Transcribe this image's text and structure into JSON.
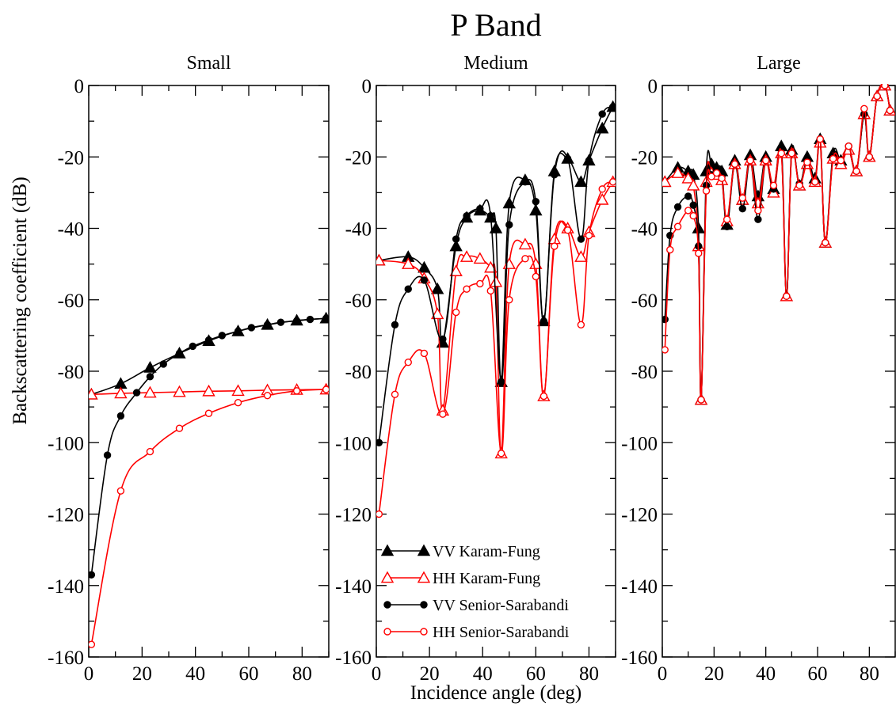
{
  "chart_data": {
    "type": "line",
    "title": "P Band",
    "xlabel": "Incidence angle (deg)",
    "ylabel": "Backscattering coefficient (dB)",
    "xlim": [
      0,
      90
    ],
    "ylim": [
      -160,
      0
    ],
    "x_ticks": [
      0,
      20,
      40,
      60,
      80
    ],
    "y_ticks": [
      0,
      -20,
      -40,
      -60,
      -80,
      -100,
      -120,
      -140,
      -160
    ],
    "legend_placement": "lower-right of middle panel",
    "colors": {
      "VV": "#000000",
      "HH": "#ff0000"
    },
    "series_styles": [
      {
        "name": "VV Karam-Fung",
        "color": "#000000",
        "marker": "filled-triangle"
      },
      {
        "name": "HH Karam-Fung",
        "color": "#ff0000",
        "marker": "open-triangle"
      },
      {
        "name": "VV Senior-Sarabandi",
        "color": "#000000",
        "marker": "filled-circle"
      },
      {
        "name": "HH Senior-Sarabandi",
        "color": "#ff0000",
        "marker": "open-circle"
      }
    ],
    "panels": [
      {
        "title": "Small",
        "series": [
          {
            "name": "VV Karam-Fung",
            "x": [
              1,
              12,
              23,
              34,
              45,
              56,
              67,
              78,
              89
            ],
            "y": [
              -86.5,
              -83.5,
              -79,
              -75,
              -71.5,
              -68.8,
              -67,
              -65.8,
              -65.2
            ]
          },
          {
            "name": "HH Karam-Fung",
            "x": [
              1,
              12,
              23,
              34,
              45,
              56,
              67,
              78,
              89
            ],
            "y": [
              -86.5,
              -86.2,
              -86,
              -85.8,
              -85.6,
              -85.5,
              -85.3,
              -85.2,
              -85.1
            ]
          },
          {
            "name": "VV Senior-Sarabandi",
            "x": [
              1,
              7,
              12,
              18,
              23,
              28,
              34,
              39,
              45,
              50,
              56,
              61,
              67,
              72,
              78,
              83,
              89
            ],
            "y": [
              -137,
              -103.5,
              -92.5,
              -86,
              -81.5,
              -78,
              -75,
              -73,
              -71.3,
              -70,
              -68.8,
              -67.8,
              -67,
              -66.3,
              -65.9,
              -65.5,
              -65.2
            ]
          },
          {
            "name": "HH Senior-Sarabandi",
            "x": [
              1,
              12,
              23,
              34,
              45,
              56,
              67,
              78,
              89
            ],
            "y": [
              -156.5,
              -113.5,
              -102.5,
              -96,
              -91.8,
              -88.8,
              -86.8,
              -85.5,
              -85.1
            ]
          }
        ]
      },
      {
        "title": "Medium",
        "series": [
          {
            "name": "VV Karam-Fung",
            "x": [
              1,
              12,
              18,
              23,
              25,
              30,
              34,
              39,
              43,
              45,
              47,
              50,
              56,
              60,
              63,
              67,
              72,
              77,
              80,
              85,
              89
            ],
            "y": [
              -49,
              -48,
              -51,
              -57,
              -72,
              -45,
              -37,
              -35,
              -37,
              -40,
              -83,
              -33,
              -26.5,
              -35,
              -66,
              -24,
              -20.5,
              -27,
              -21,
              -12,
              -6
            ]
          },
          {
            "name": "HH Karam-Fung",
            "x": [
              1,
              12,
              18,
              23,
              25,
              30,
              34,
              39,
              43,
              45,
              47,
              50,
              56,
              60,
              63,
              67,
              72,
              77,
              80,
              85,
              89
            ],
            "y": [
              -49,
              -50,
              -54,
              -64,
              -91,
              -52,
              -48,
              -48.5,
              -51,
              -55,
              -103,
              -50,
              -44.5,
              -50,
              -87,
              -43,
              -40,
              -48,
              -41,
              -32,
              -27
            ]
          },
          {
            "name": "VV Senior-Sarabandi",
            "x": [
              1,
              7,
              12,
              18,
              25,
              30,
              34,
              39,
              43,
              47,
              50,
              56,
              60,
              63,
              67,
              72,
              77,
              80,
              85,
              89
            ],
            "y": [
              -100,
              -67,
              -57,
              -54.5,
              -71,
              -43,
              -36.5,
              -34.5,
              -36.5,
              -83,
              -39,
              -27,
              -32.5,
              -66,
              -25,
              -20.5,
              -43,
              -21,
              -8,
              -6
            ]
          },
          {
            "name": "HH Senior-Sarabandi",
            "x": [
              1,
              7,
              12,
              18,
              25,
              30,
              34,
              39,
              43,
              47,
              50,
              56,
              60,
              63,
              67,
              72,
              77,
              80,
              85,
              89
            ],
            "y": [
              -120,
              -86.5,
              -77.5,
              -75,
              -92,
              -63.5,
              -57,
              -55.5,
              -57.5,
              -103,
              -60,
              -48.5,
              -53.5,
              -87,
              -45,
              -40.5,
              -67,
              -42,
              -29,
              -27
            ]
          }
        ]
      },
      {
        "title": "Large",
        "series": [
          {
            "name": "VV Karam-Fung",
            "x": [
              1,
              6,
              10,
              12,
              14,
              15,
              17,
              19,
              21,
              23,
              25,
              28,
              31,
              34,
              37,
              40,
              43,
              46,
              48,
              50,
              53,
              56,
              59,
              61,
              63,
              66,
              69,
              72,
              75,
              78,
              80,
              83,
              86,
              88
            ],
            "y": [
              -27,
              -23,
              -24,
              -25,
              -40,
              -88,
              -24,
              -22,
              -23,
              -24,
              -39,
              -21,
              -32,
              -19.5,
              -31,
              -20,
              -29,
              -17,
              -59,
              -18,
              -28,
              -20,
              -26,
              -15,
              -44,
              -19,
              -21,
              -18,
              -24,
              -8,
              -20,
              -3,
              0,
              -7
            ]
          },
          {
            "name": "HH Karam-Fung",
            "x": [
              1,
              6,
              10,
              12,
              14,
              15,
              17,
              19,
              21,
              23,
              25,
              28,
              31,
              34,
              37,
              40,
              43,
              46,
              48,
              50,
              53,
              56,
              59,
              61,
              63,
              66,
              69,
              72,
              75,
              78,
              80,
              83,
              86,
              88
            ],
            "y": [
              -27,
              -24.5,
              -26,
              -28,
              -45,
              -88,
              -27,
              -24.5,
              -25,
              -26.5,
              -38,
              -22,
              -32,
              -21,
              -33,
              -21,
              -30,
              -19,
              -59,
              -19,
              -28,
              -22,
              -27,
              -16,
              -44,
              -20.5,
              -22,
              -18,
              -24,
              -8,
              -20,
              -3,
              0,
              -7
            ]
          },
          {
            "name": "VV Senior-Sarabandi",
            "x": [
              1,
              3,
              6,
              10,
              12,
              14,
              15,
              17,
              19,
              21,
              23,
              25,
              28,
              31,
              34,
              37,
              40,
              43,
              46,
              48,
              50,
              53,
              56,
              59,
              61,
              63,
              66,
              69,
              72,
              75,
              78,
              80,
              83,
              86,
              88
            ],
            "y": [
              -65.5,
              -42,
              -34,
              -31,
              -33.5,
              -45,
              -88,
              -28,
              -25,
              -24,
              -25.5,
              -39.5,
              -22,
              -34.5,
              -21,
              -37.5,
              -21,
              -29,
              -18,
              -59,
              -19,
              -27.5,
              -21,
              -27,
              -15,
              -44,
              -20,
              -21,
              -17,
              -24,
              -8,
              -20,
              -3,
              0,
              -7
            ]
          },
          {
            "name": "HH Senior-Sarabandi",
            "x": [
              1,
              3,
              6,
              10,
              12,
              14,
              15,
              17,
              19,
              21,
              23,
              25,
              28,
              31,
              34,
              37,
              40,
              43,
              46,
              48,
              50,
              53,
              56,
              59,
              61,
              63,
              66,
              69,
              72,
              75,
              78,
              80,
              83,
              86,
              88
            ],
            "y": [
              -74,
              -46,
              -39.5,
              -35,
              -36.5,
              -47,
              -88,
              -29.5,
              -25.5,
              -24.5,
              -26,
              -37.5,
              -22,
              -31.5,
              -21,
              -35,
              -21,
              -28,
              -19,
              -59,
              -19,
              -28,
              -21.5,
              -27,
              -15,
              -44,
              -20.5,
              -21,
              -17,
              -24,
              -6.5,
              -20,
              -3,
              0,
              -7
            ]
          }
        ]
      }
    ]
  }
}
